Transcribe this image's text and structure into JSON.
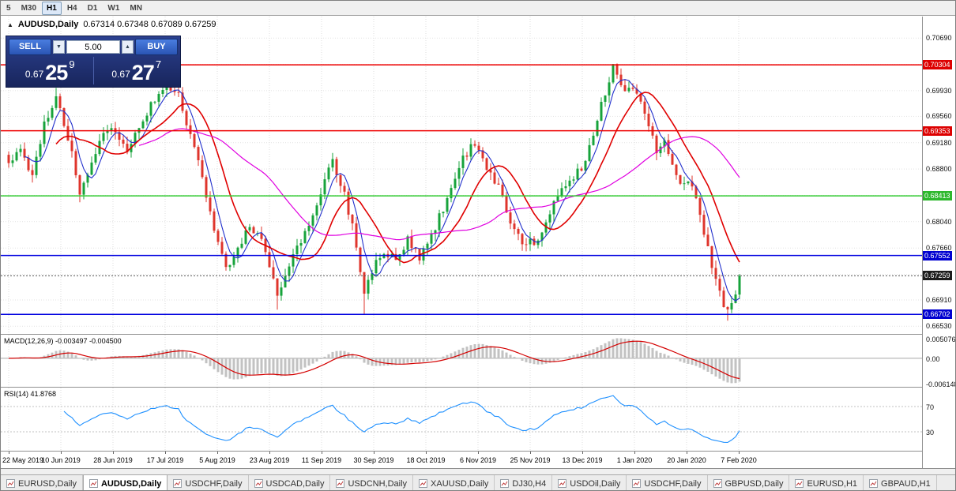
{
  "toolbar": {
    "timeframes": [
      {
        "label": "5",
        "active": false
      },
      {
        "label": "M30",
        "active": false
      },
      {
        "label": "H1",
        "active": true
      },
      {
        "label": "H4",
        "active": false
      },
      {
        "label": "D1",
        "active": false
      },
      {
        "label": "W1",
        "active": false
      },
      {
        "label": "MN",
        "active": false
      }
    ]
  },
  "chart": {
    "title": "AUDUSD,Daily",
    "ohlc": "0.67314 0.67348 0.67089 0.67259"
  },
  "icons": {
    "collapse": "▲",
    "spin_up": "▲",
    "spin_down": "▼"
  },
  "trade_panel": {
    "sell_label": "SELL",
    "buy_label": "BUY",
    "volume": "5.00",
    "sell": {
      "prefix": "0.67",
      "big": "25",
      "sup": "9"
    },
    "buy": {
      "prefix": "0.67",
      "big": "27",
      "sup": "7"
    }
  },
  "price_scale": {
    "plain_labels": [
      {
        "text": "0.70690",
        "price": 0.7069
      },
      {
        "text": "0.69930",
        "price": 0.6993
      },
      {
        "text": "0.69560",
        "price": 0.6956
      },
      {
        "text": "0.69180",
        "price": 0.6918
      },
      {
        "text": "0.68800",
        "price": 0.688
      },
      {
        "text": "0.68040",
        "price": 0.6804
      },
      {
        "text": "0.67660",
        "price": 0.6766
      },
      {
        "text": "0.66910",
        "price": 0.6691
      },
      {
        "text": "0.66530",
        "price": 0.6653
      }
    ],
    "badges": [
      {
        "text": "0.70304",
        "price": 0.70304,
        "color": "#dd0000"
      },
      {
        "text": "0.69353",
        "price": 0.69353,
        "color": "#dd0000"
      },
      {
        "text": "0.68413",
        "price": 0.68413,
        "color": "#2db82d"
      },
      {
        "text": "0.67552",
        "price": 0.67552,
        "color": "#0000d0"
      },
      {
        "text": "0.66702",
        "price": 0.66702,
        "color": "#0000d0"
      },
      {
        "text": "0.67259",
        "price": 0.67259,
        "color": "#1c1c1c"
      }
    ]
  },
  "macd": {
    "header": "MACD(12,26,9) -0.003497 -0.004500",
    "axis_labels": [
      {
        "text": "0.005076",
        "value": 0.005076
      },
      {
        "text": "0.00",
        "value": 0
      },
      {
        "text": "-0.006148",
        "value": -0.006148
      }
    ],
    "scale": {
      "top": 0.0058,
      "bottom": -0.007
    }
  },
  "rsi": {
    "header": "RSI(14) 41.8768",
    "axis_labels": [
      {
        "text": "70",
        "value": 70
      },
      {
        "text": "30",
        "value": 30
      }
    ],
    "levels": [
      70,
      30
    ]
  },
  "date_axis": {
    "labels": [
      "22 May 2019",
      "10 Jun 2019",
      "28 Jun 2019",
      "17 Jul 2019",
      "5 Aug 2019",
      "23 Aug 2019",
      "11 Sep 2019",
      "30 Sep 2019",
      "18 Oct 2019",
      "6 Nov 2019",
      "25 Nov 2019",
      "13 Dec 2019",
      "1 Jan 2020",
      "20 Jan 2020",
      "7 Feb 2020"
    ]
  },
  "tabs": [
    {
      "label": "EURUSD,Daily",
      "active": false
    },
    {
      "label": "AUDUSD,Daily",
      "active": true
    },
    {
      "label": "USDCHF,Daily",
      "active": false
    },
    {
      "label": "USDCAD,Daily",
      "active": false
    },
    {
      "label": "USDCNH,Daily",
      "active": false
    },
    {
      "label": "XAUUSD,Daily",
      "active": false
    },
    {
      "label": "DJ30,H4",
      "active": false
    },
    {
      "label": "USDOil,Daily",
      "active": false
    },
    {
      "label": "USDCHF,Daily",
      "active": false
    },
    {
      "label": "GBPUSD,Daily",
      "active": false
    },
    {
      "label": "EURUSD,H1",
      "active": false
    },
    {
      "label": "GBPAUD,H1",
      "active": false
    }
  ],
  "chart_data": {
    "type": "candlestick",
    "symbol": "AUDUSD",
    "timeframe": "Daily",
    "title": "AUDUSD,Daily",
    "x_labels": [
      "22 May 2019",
      "10 Jun 2019",
      "28 Jun 2019",
      "17 Jul 2019",
      "5 Aug 2019",
      "23 Aug 2019",
      "11 Sep 2019",
      "30 Sep 2019",
      "18 Oct 2019",
      "6 Nov 2019",
      "25 Nov 2019",
      "13 Dec 2019",
      "1 Jan 2020",
      "20 Jan 2020",
      "7 Feb 2020"
    ],
    "price_range": {
      "top": 0.71,
      "bottom": 0.6642
    },
    "candle_count": 186,
    "candle_colors": {
      "up": "#17a33b",
      "down": "#df352c"
    },
    "close_anchors": [
      [
        0,
        0.6885
      ],
      [
        3,
        0.6912
      ],
      [
        6,
        0.6868
      ],
      [
        9,
        0.6942
      ],
      [
        12,
        0.6988
      ],
      [
        15,
        0.6925
      ],
      [
        18,
        0.6848
      ],
      [
        21,
        0.6892
      ],
      [
        24,
        0.6926
      ],
      [
        27,
        0.6936
      ],
      [
        30,
        0.6908
      ],
      [
        33,
        0.6944
      ],
      [
        36,
        0.6972
      ],
      [
        40,
        0.6996
      ],
      [
        43,
        0.6986
      ],
      [
        46,
        0.6932
      ],
      [
        49,
        0.6872
      ],
      [
        52,
        0.6792
      ],
      [
        55,
        0.6732
      ],
      [
        58,
        0.6762
      ],
      [
        61,
        0.6802
      ],
      [
        64,
        0.6776
      ],
      [
        66,
        0.6738
      ],
      [
        68,
        0.6694
      ],
      [
        70,
        0.6722
      ],
      [
        73,
        0.6766
      ],
      [
        76,
        0.6802
      ],
      [
        79,
        0.6846
      ],
      [
        82,
        0.689
      ],
      [
        85,
        0.6842
      ],
      [
        88,
        0.6772
      ],
      [
        90,
        0.67
      ],
      [
        92,
        0.6732
      ],
      [
        95,
        0.6762
      ],
      [
        98,
        0.6748
      ],
      [
        101,
        0.6776
      ],
      [
        104,
        0.6754
      ],
      [
        107,
        0.6786
      ],
      [
        110,
        0.6822
      ],
      [
        113,
        0.6872
      ],
      [
        115,
        0.6896
      ],
      [
        118,
        0.692
      ],
      [
        121,
        0.6884
      ],
      [
        124,
        0.6852
      ],
      [
        127,
        0.6804
      ],
      [
        130,
        0.6778
      ],
      [
        133,
        0.6772
      ],
      [
        136,
        0.6802
      ],
      [
        139,
        0.684
      ],
      [
        142,
        0.6862
      ],
      [
        145,
        0.6882
      ],
      [
        148,
        0.693
      ],
      [
        151,
        0.6992
      ],
      [
        153,
        0.7028
      ],
      [
        156,
        0.6996
      ],
      [
        159,
        0.6986
      ],
      [
        162,
        0.6946
      ],
      [
        164,
        0.6902
      ],
      [
        166,
        0.6922
      ],
      [
        168,
        0.6882
      ],
      [
        170,
        0.6852
      ],
      [
        172,
        0.6866
      ],
      [
        174,
        0.6832
      ],
      [
        176,
        0.6792
      ],
      [
        178,
        0.6742
      ],
      [
        180,
        0.6702
      ],
      [
        182,
        0.6672
      ],
      [
        184,
        0.6694
      ],
      [
        185,
        0.67259
      ]
    ],
    "wick_overrides": [
      [
        12,
        "high",
        0.6997
      ],
      [
        18,
        "low",
        0.6832
      ],
      [
        40,
        "high",
        0.7002
      ],
      [
        68,
        "low",
        0.6677
      ],
      [
        90,
        "low",
        0.667
      ],
      [
        153,
        "high",
        0.7031
      ],
      [
        182,
        "low",
        0.6661
      ]
    ],
    "moving_averages": [
      {
        "period": 5,
        "color": "#2230cc",
        "width": 1.1
      },
      {
        "period": 13,
        "color": "#e00000",
        "width": 1.6
      },
      {
        "period": 34,
        "color": "#e000e0",
        "width": 1.2
      }
    ],
    "hlines": [
      {
        "price": 0.70304,
        "color": "#ee0000",
        "width": 1.5
      },
      {
        "price": 0.69353,
        "color": "#ee0000",
        "width": 1.5
      },
      {
        "price": 0.68413,
        "color": "#33cc33",
        "width": 1.5
      },
      {
        "price": 0.67552,
        "color": "#0000e0",
        "width": 1.5
      },
      {
        "price": 0.66702,
        "color": "#0000e0",
        "width": 1.5
      }
    ],
    "current_price": 0.67259,
    "grid_prices": [
      0.7069,
      0.7031,
      0.6993,
      0.6956,
      0.6918,
      0.688,
      0.6842,
      0.6804,
      0.6766,
      0.6728,
      0.6691,
      0.6653
    ],
    "indicators": {
      "macd": {
        "fast": 12,
        "slow": 26,
        "signal": 9,
        "last_main": -0.003497,
        "last_signal": -0.0045,
        "histogram_color": "#c2c2c2",
        "signal_color": "#d40000"
      },
      "rsi": {
        "period": 14,
        "last_value": 41.8768,
        "color": "#1e90ff",
        "levels": [
          70,
          30
        ]
      }
    }
  }
}
